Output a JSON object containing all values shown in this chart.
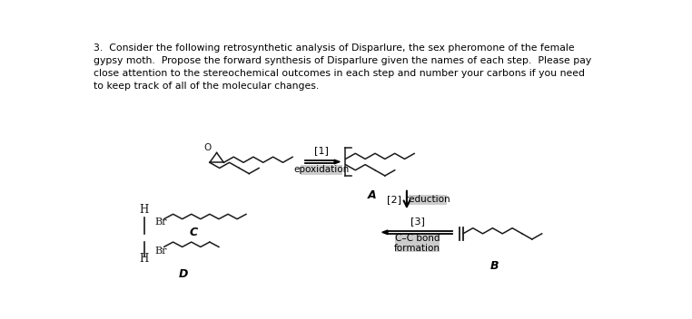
{
  "title_text": "3.  Consider the following retrosynthetic analysis of Disparlure, the sex pheromone of the female\ngypsy moth.  Propose the forward synthesis of Disparlure given the names of each step.  Please pay\nclose attention to the stereochemical outcomes in each step and number your carbons if you need\nto keep track of all of the molecular changes.",
  "bg_color": "#ffffff",
  "text_color": "#000000",
  "mol_color": "#1a1a1a",
  "arrow_color": "#000000",
  "label_bg": "#cccccc",
  "step1_label": "[1]",
  "step1_name": "epoxidation",
  "step2_label": "[2]",
  "step2_name": "reduction",
  "step3_label": "[3]",
  "step3_name": "C–C bond\nformation",
  "label_A": "A",
  "label_B": "B",
  "label_C": "C",
  "label_D": "D"
}
